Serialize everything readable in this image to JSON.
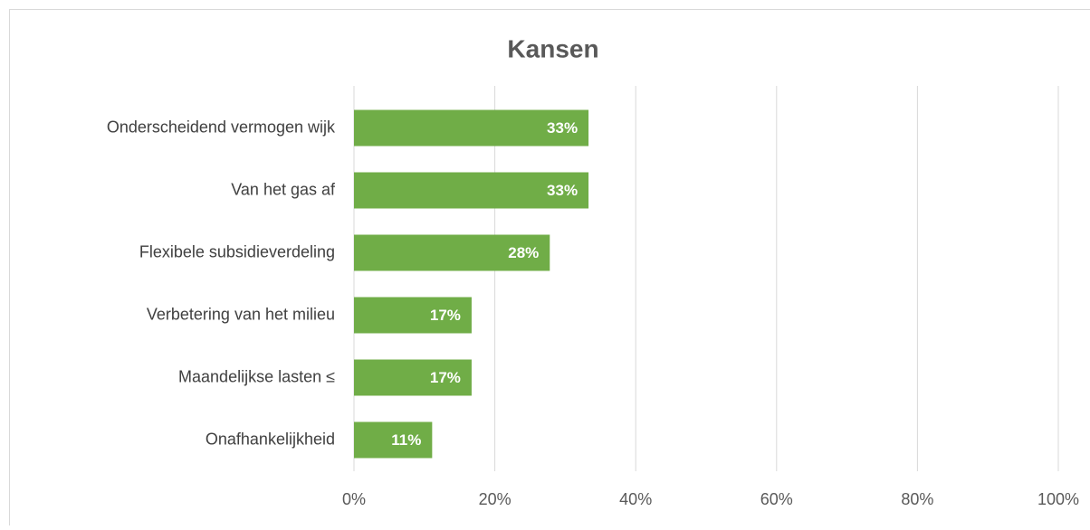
{
  "chart_data": {
    "type": "bar",
    "orientation": "horizontal",
    "title": "Kansen",
    "categories": [
      "Onderscheidend vermogen wijk",
      "Van het gas af",
      "Flexibele subsidieverdeling",
      "Verbetering van het milieu",
      "Maandelijkse lasten ≤",
      "Onafhankelijkheid"
    ],
    "values": [
      33.3,
      33.3,
      27.8,
      16.7,
      16.7,
      11.1
    ],
    "value_labels": [
      "33%",
      "33%",
      "28%",
      "17%",
      "17%",
      "11%"
    ],
    "color": "#70ad47",
    "xlim": [
      0,
      100
    ],
    "xticks": [
      {
        "value": 0,
        "label": "0%"
      },
      {
        "value": 20,
        "label": "20%"
      },
      {
        "value": 40,
        "label": "40%"
      },
      {
        "value": 60,
        "label": "60%"
      },
      {
        "value": 80,
        "label": "80%"
      },
      {
        "value": 100,
        "label": "100%"
      }
    ],
    "grid": true
  }
}
